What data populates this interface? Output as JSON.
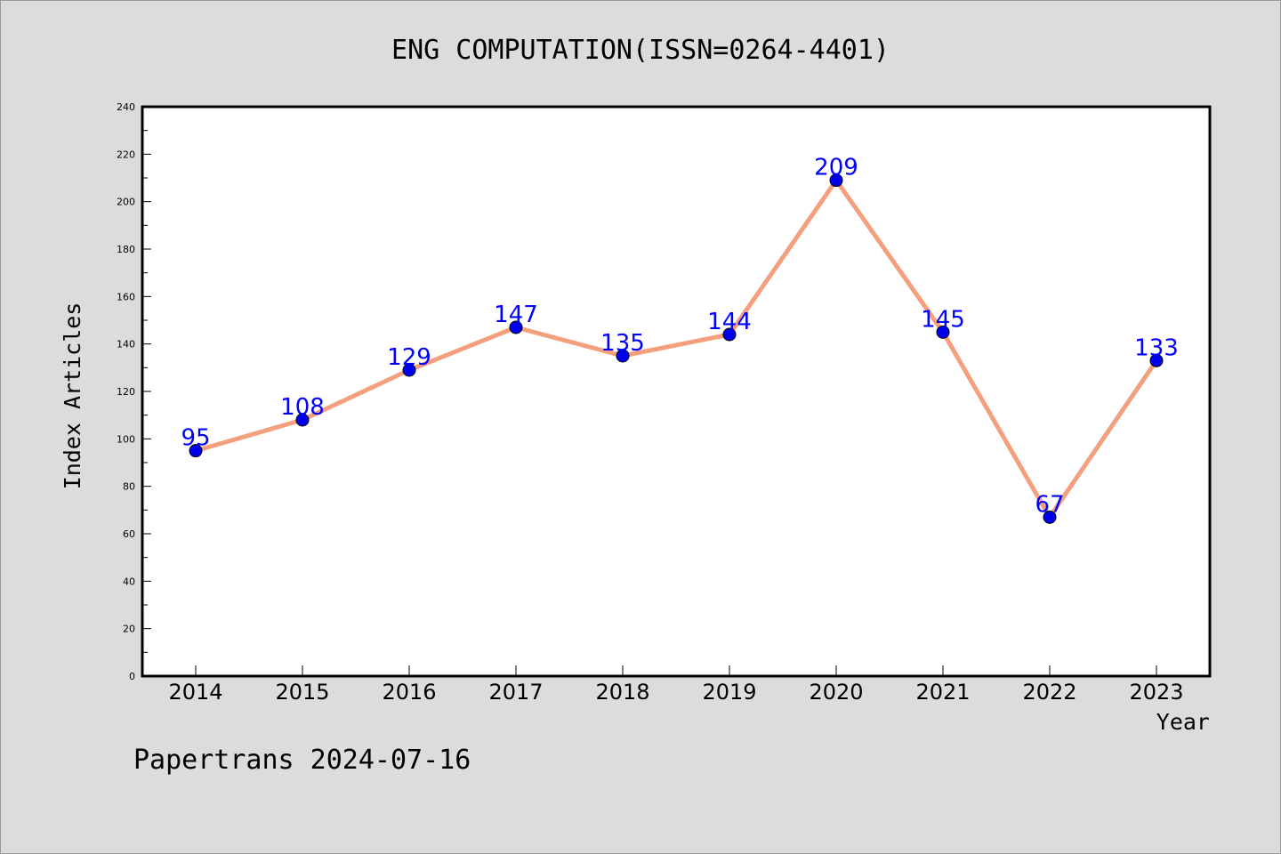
{
  "chart_data": {
    "type": "line",
    "title": "ENG COMPUTATION(ISSN=0264-4401)",
    "xlabel": "Year",
    "ylabel": "Index Articles",
    "categories": [
      "2014",
      "2015",
      "2016",
      "2017",
      "2018",
      "2019",
      "2020",
      "2021",
      "2022",
      "2023"
    ],
    "values": [
      95,
      108,
      129,
      147,
      135,
      144,
      209,
      145,
      67,
      133
    ],
    "data_labels": [
      "95",
      "108",
      "129",
      "147",
      "135",
      "144",
      "209",
      "145",
      "67",
      "133"
    ],
    "ylim": [
      0,
      240
    ],
    "yticks": [
      0,
      20,
      40,
      60,
      80,
      100,
      120,
      140,
      160,
      180,
      200,
      220,
      240
    ],
    "grid": false,
    "legend": "none"
  },
  "footer": "Papertrans 2024-07-16",
  "colors": {
    "background": "#dcdcdc",
    "plot_background": "#ffffff",
    "line": "#f4a07e",
    "marker": "#0000ee",
    "data_label": "#0000ff",
    "axis": "#000000"
  }
}
